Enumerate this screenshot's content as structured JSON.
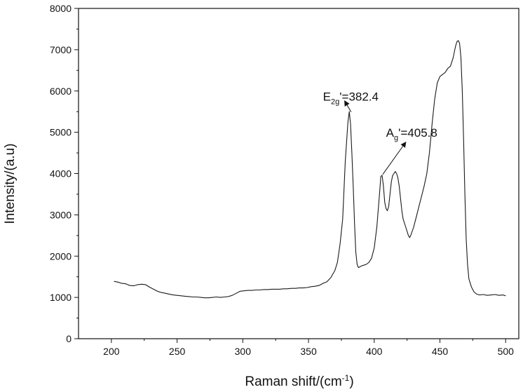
{
  "chart_data": {
    "type": "line",
    "title": "",
    "xlabel": "Raman shift/(cm",
    "xlabel_sup": "-1",
    "xlabel_close": ")",
    "ylabel": "Intensity/(a.u)",
    "xlim": [
      175,
      510
    ],
    "ylim": [
      0,
      8000
    ],
    "x_ticks": [
      200,
      250,
      300,
      350,
      400,
      450,
      500
    ],
    "y_ticks": [
      0,
      1000,
      2000,
      3000,
      4000,
      5000,
      6000,
      7000,
      8000
    ],
    "grid": false,
    "legend": "none",
    "line_color": "#1a1a1a",
    "series": [
      {
        "x": [
          202,
          205,
          208,
          211,
          214,
          217,
          220,
          223,
          226,
          229,
          232,
          235,
          238,
          241,
          244,
          247,
          250,
          253,
          256,
          259,
          262,
          265,
          268,
          271,
          274,
          277,
          280,
          283,
          286,
          289,
          292,
          295,
          298,
          301,
          304,
          307,
          310,
          313,
          316,
          319,
          322,
          325,
          328,
          331,
          334,
          337,
          340,
          343,
          346,
          349,
          352,
          355,
          358,
          361,
          364,
          367,
          370,
          372,
          374,
          376,
          378,
          380,
          381,
          382,
          383,
          384,
          385,
          386,
          387,
          388,
          389,
          390,
          392,
          394,
          396,
          398,
          400,
          402,
          404,
          405,
          406,
          407,
          408,
          409,
          410,
          411,
          412,
          413,
          414,
          415,
          416,
          417,
          418,
          419,
          420,
          421,
          422,
          424,
          426,
          427,
          428,
          430,
          432,
          434,
          436,
          438,
          440,
          442,
          444,
          446,
          448,
          450,
          452,
          454,
          456,
          458,
          460,
          461,
          462,
          463,
          464,
          465,
          466,
          467,
          468,
          469,
          470,
          471,
          472,
          474,
          476,
          478,
          480,
          483,
          486,
          489,
          492,
          495,
          498,
          500
        ],
        "y": [
          1390,
          1370,
          1340,
          1330,
          1290,
          1280,
          1310,
          1320,
          1310,
          1250,
          1200,
          1150,
          1120,
          1100,
          1080,
          1060,
          1050,
          1040,
          1030,
          1020,
          1010,
          1010,
          1000,
          990,
          990,
          1000,
          1010,
          1000,
          1010,
          1020,
          1050,
          1100,
          1150,
          1160,
          1170,
          1170,
          1180,
          1180,
          1190,
          1190,
          1200,
          1200,
          1200,
          1210,
          1210,
          1220,
          1220,
          1230,
          1230,
          1240,
          1260,
          1270,
          1290,
          1340,
          1380,
          1480,
          1650,
          1850,
          2300,
          2900,
          4300,
          5250,
          5500,
          5200,
          4500,
          3700,
          2800,
          2100,
          1800,
          1720,
          1740,
          1760,
          1780,
          1800,
          1850,
          1950,
          2200,
          2700,
          3500,
          3930,
          3960,
          3700,
          3300,
          3150,
          3100,
          3200,
          3500,
          3800,
          3950,
          4000,
          4050,
          4000,
          3900,
          3700,
          3400,
          3100,
          2900,
          2700,
          2500,
          2450,
          2520,
          2700,
          2950,
          3200,
          3450,
          3700,
          4000,
          4500,
          5200,
          5800,
          6200,
          6350,
          6400,
          6450,
          6550,
          6600,
          6800,
          6950,
          7100,
          7200,
          7220,
          7150,
          6800,
          6000,
          4800,
          3500,
          2400,
          1800,
          1450,
          1250,
          1130,
          1080,
          1060,
          1070,
          1050,
          1060,
          1070,
          1050,
          1060,
          1040
        ]
      }
    ],
    "annotations": [
      {
        "base": "E",
        "sub": "2g",
        "rest": "'=382.4",
        "peak_x": 382.4,
        "peak_y": 5500,
        "label_x": 377,
        "label_y": 5770,
        "arrow_from": [
          382.4,
          5490
        ],
        "arrow_to": [
          377.5,
          5760
        ]
      },
      {
        "base": "A",
        "sub": "g",
        "rest": "'=405.8",
        "peak_x": 405.8,
        "peak_y": 3960,
        "label_x": 409,
        "label_y": 4890,
        "arrow_from": [
          406.5,
          3980
        ],
        "arrow_to": [
          424,
          4760
        ]
      }
    ]
  }
}
